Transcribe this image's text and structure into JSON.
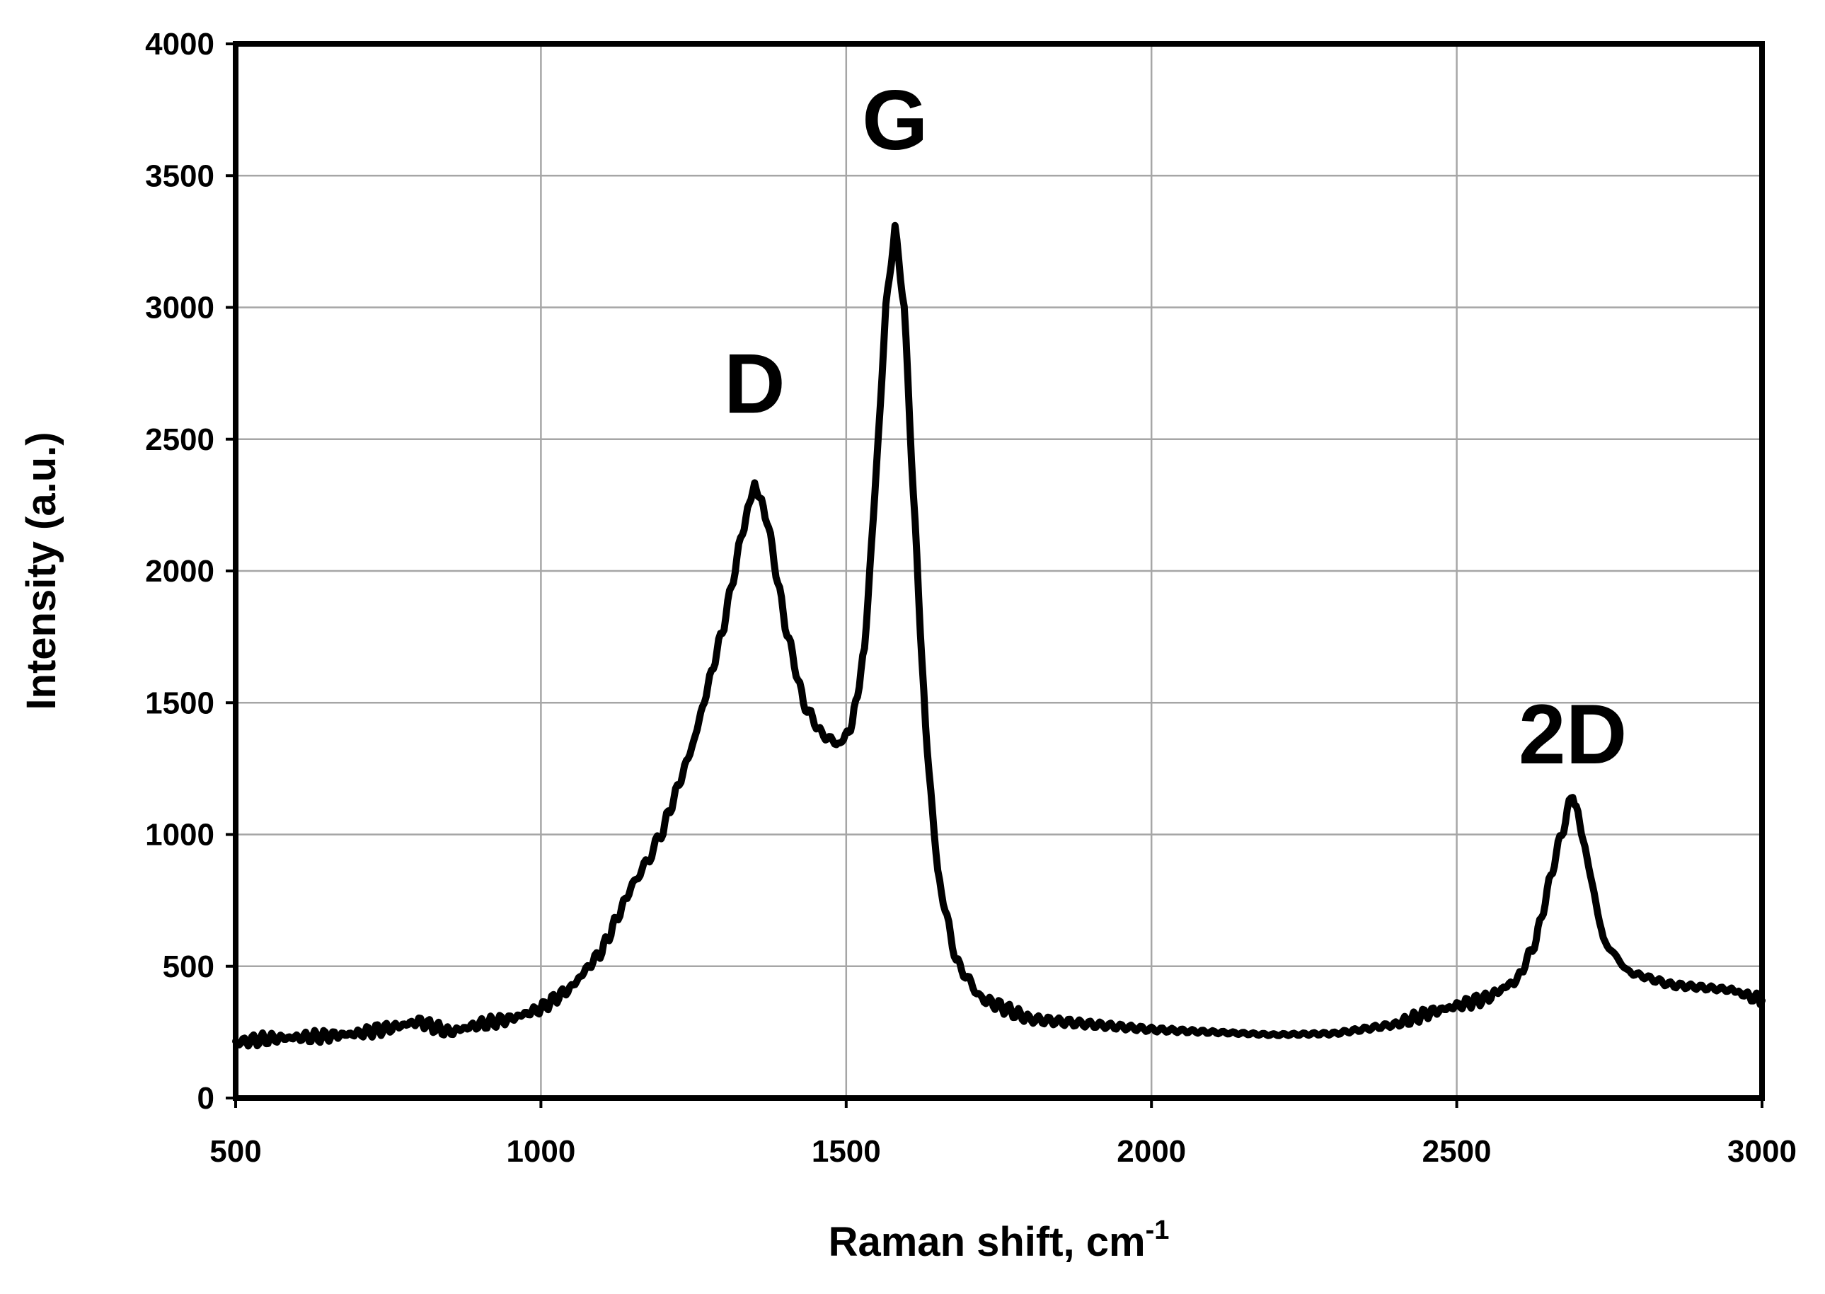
{
  "chart_data": {
    "type": "line",
    "title": "",
    "xlabel": "Raman shift, cm",
    "xlabel_superscript": "-1",
    "ylabel": "Intensity (a.u.)",
    "xlim": [
      500,
      3000
    ],
    "ylim": [
      0,
      4000
    ],
    "x_ticks": [
      "500",
      "1000",
      "1500",
      "2000",
      "2500",
      "3000"
    ],
    "y_ticks": [
      "0",
      "500",
      "1000",
      "1500",
      "2000",
      "2500",
      "3000",
      "3500",
      "4000"
    ],
    "grid": true,
    "legend": "none",
    "line_color": "#000000",
    "annotations": [
      {
        "text": "D",
        "x": 1350,
        "y": 2600
      },
      {
        "text": "G",
        "x": 1580,
        "y": 3600
      },
      {
        "text": "2D",
        "x": 2690,
        "y": 1270
      }
    ],
    "series": [
      {
        "x": [
          500,
          550,
          600,
          650,
          700,
          750,
          800,
          850,
          900,
          950,
          1000,
          1050,
          1100,
          1150,
          1175,
          1200,
          1250,
          1300,
          1330,
          1350,
          1370,
          1400,
          1430,
          1460,
          1490,
          1510,
          1530,
          1550,
          1565,
          1580,
          1595,
          1610,
          1630,
          1650,
          1680,
          1720,
          1800,
          1900,
          2000,
          2100,
          2200,
          2300,
          2400,
          2450,
          2500,
          2550,
          2600,
          2630,
          2660,
          2690,
          2710,
          2740,
          2780,
          2850,
          2950,
          3000
        ],
        "y": [
          210,
          225,
          230,
          235,
          245,
          265,
          290,
          250,
          280,
          300,
          340,
          420,
          560,
          810,
          900,
          1020,
          1350,
          1800,
          2150,
          2330,
          2200,
          1800,
          1500,
          1380,
          1340,
          1420,
          1700,
          2400,
          3000,
          3300,
          3000,
          2300,
          1400,
          850,
          520,
          380,
          300,
          280,
          260,
          250,
          240,
          245,
          280,
          320,
          350,
          380,
          450,
          600,
          900,
          1160,
          950,
          600,
          480,
          430,
          410,
          370
        ]
      }
    ]
  }
}
